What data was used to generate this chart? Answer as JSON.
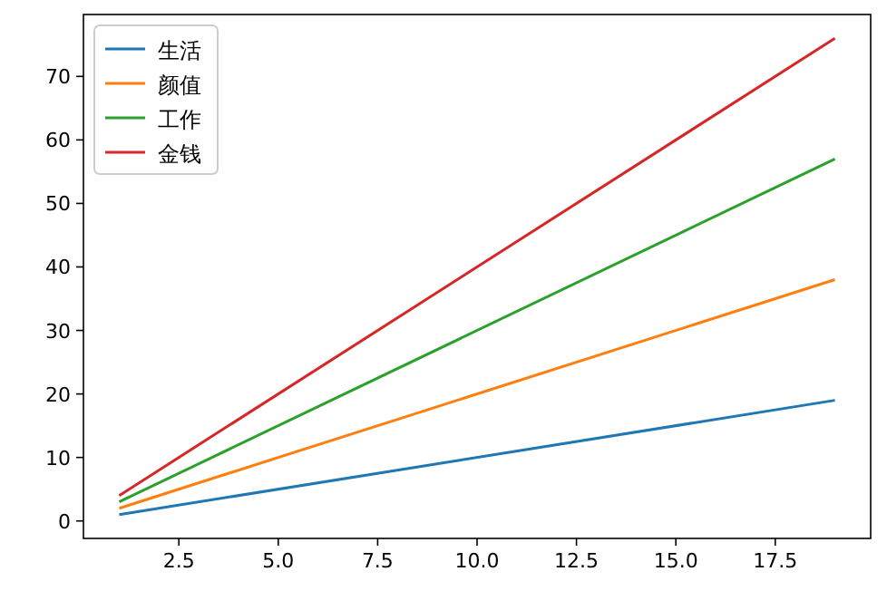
{
  "chart_data": {
    "type": "line",
    "x": [
      1,
      19
    ],
    "series": [
      {
        "name": "生活",
        "color": "#1f77b4",
        "values": [
          1,
          19
        ]
      },
      {
        "name": "颜值",
        "color": "#ff7f0e",
        "values": [
          2,
          38
        ]
      },
      {
        "name": "工作",
        "color": "#2ca02c",
        "values": [
          3,
          57
        ]
      },
      {
        "name": "金钱",
        "color": "#d62728",
        "values": [
          4,
          76
        ]
      }
    ],
    "xlim": [
      0.1,
      19.9
    ],
    "ylim": [
      -2.75,
      79.75
    ],
    "xticks": [
      2.5,
      {
        "value": 5,
        "label": "5.0"
      },
      7.5,
      {
        "value": 10,
        "label": "10.0"
      },
      12.5,
      {
        "value": 15,
        "label": "15.0"
      },
      17.5
    ],
    "yticks": [
      0,
      10,
      20,
      30,
      40,
      50,
      60,
      70
    ],
    "legend": "top left",
    "grid": false,
    "marker": "none",
    "line_style": "solid"
  }
}
